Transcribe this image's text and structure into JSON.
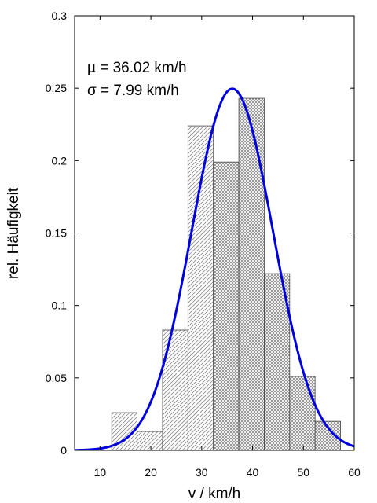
{
  "chart_data": {
    "type": "bar",
    "xlabel": "v / km/h",
    "ylabel": "rel. Häufigkeit",
    "xlim": [
      5,
      60
    ],
    "ylim": [
      0,
      0.3
    ],
    "x_ticks": [
      "10",
      "20",
      "30",
      "40",
      "50",
      "60"
    ],
    "y_ticks": [
      "0",
      "0.05",
      "0.1",
      "0.15",
      "0.2",
      "0.25",
      "0.3"
    ],
    "grid": false,
    "bins": [
      {
        "from": 12.3,
        "to": 17.3,
        "value": 0.026
      },
      {
        "from": 17.3,
        "to": 22.3,
        "value": 0.013
      },
      {
        "from": 22.3,
        "to": 27.3,
        "value": 0.083
      },
      {
        "from": 27.3,
        "to": 32.3,
        "value": 0.224
      },
      {
        "from": 32.3,
        "to": 37.3,
        "value": 0.199
      },
      {
        "from": 37.3,
        "to": 42.3,
        "value": 0.243
      },
      {
        "from": 42.3,
        "to": 47.3,
        "value": 0.122
      },
      {
        "from": 47.3,
        "to": 52.3,
        "value": 0.051
      },
      {
        "from": 52.3,
        "to": 57.3,
        "value": 0.02
      }
    ],
    "bin_fill_pattern": [
      "diagonal",
      "diagonal",
      "diagonal",
      "diagonal",
      "crosshatch",
      "crosshatch",
      "crosshatch",
      "crosshatch",
      "crosshatch"
    ],
    "fit_curve": {
      "type": "normal",
      "mean": 36.02,
      "std": 7.99,
      "color": "#0000dd"
    },
    "annotations": [
      "µ = 36.02 km/h",
      "σ = 7.99 km/h"
    ]
  }
}
